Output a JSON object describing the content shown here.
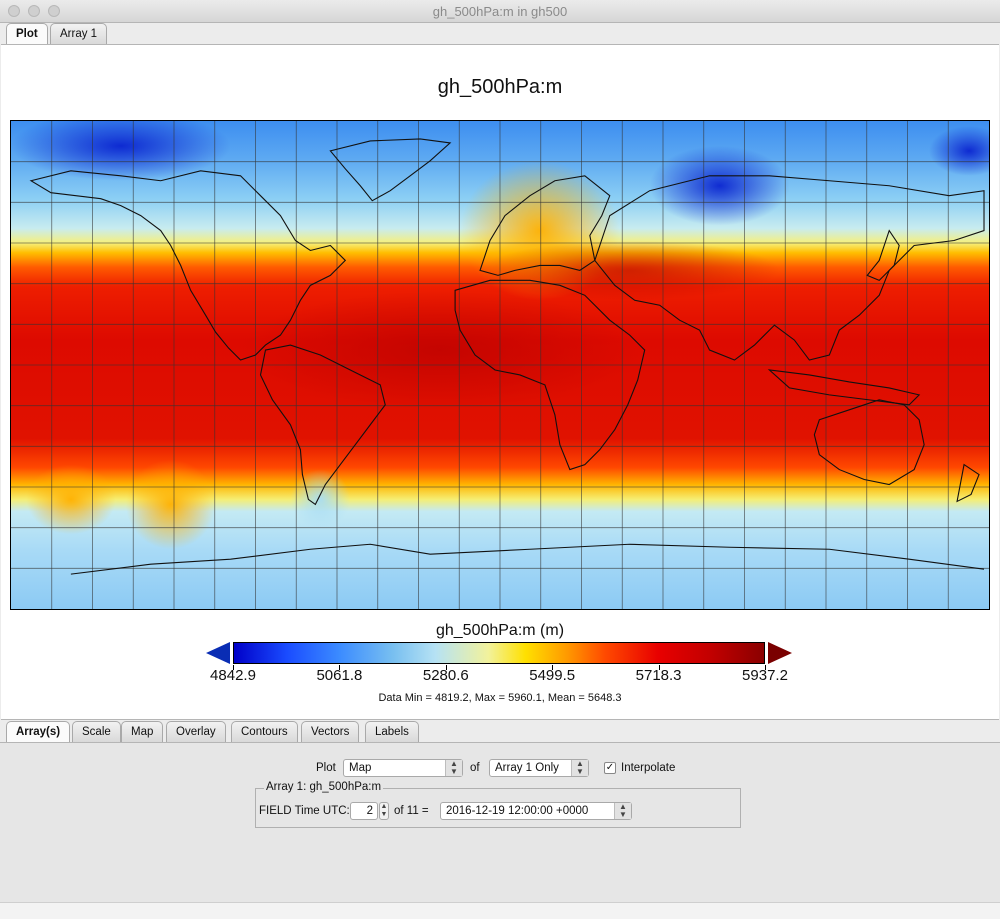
{
  "window": {
    "title": "gh_500hPa:m in gh500"
  },
  "top_tabs": [
    {
      "label": "Plot",
      "active": true
    },
    {
      "label": "Array 1",
      "active": false
    }
  ],
  "plot": {
    "title": "gh_500hPa:m",
    "colorbar": {
      "label": "gh_500hPa:m (m)",
      "ticks": [
        "4842.9",
        "5061.8",
        "5280.6",
        "5499.5",
        "5718.3",
        "5937.2"
      ],
      "min_arrow_color": "#0a2db4",
      "max_arrow_color": "#7a0000"
    },
    "stats": "Data Min = 4819.2, Max = 5960.1, Mean = 5648.3"
  },
  "bottom_tabs": [
    {
      "label": "Array(s)",
      "active": true
    },
    {
      "label": "Scale",
      "active": false
    },
    {
      "label": "Map",
      "active": false
    },
    {
      "label": "Overlay",
      "active": false
    },
    {
      "label": "Contours",
      "active": false
    },
    {
      "label": "Vectors",
      "active": false
    },
    {
      "label": "Labels",
      "active": false
    }
  ],
  "controls": {
    "plot_label": "Plot",
    "plot_type": "Map",
    "of_label": "of",
    "array_select": "Array 1 Only",
    "interpolate_label": "Interpolate",
    "interpolate_checked": true,
    "group_title": "Array 1: gh_500hPa:m",
    "field_time_label": "FIELD Time UTC:",
    "time_index": "2",
    "of_count": "of 11 =",
    "time_value": "2016-12-19 12:00:00 +0000"
  }
}
